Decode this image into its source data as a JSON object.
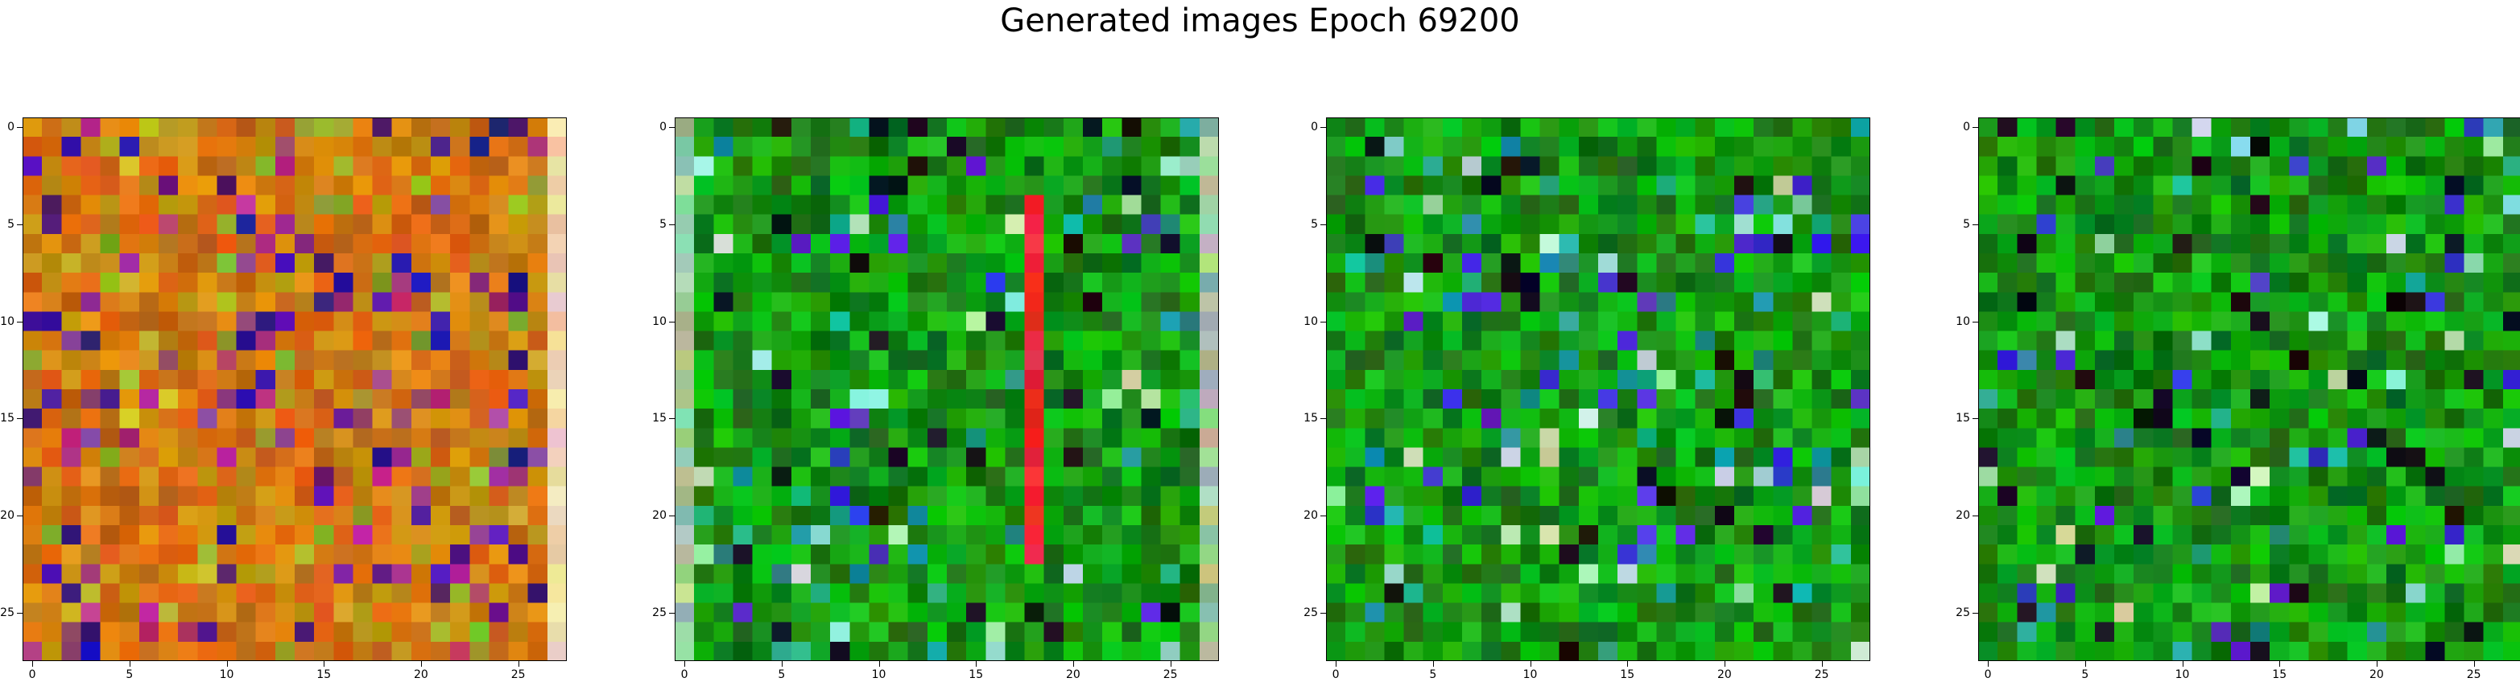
{
  "title": "Generated images Epoch 69200",
  "chart_data": {
    "type": "heatmap",
    "title": "Generated images Epoch 69200",
    "image_size": 28,
    "xlim": [
      -0.5,
      27.5
    ],
    "ylim": [
      27.5,
      -0.5
    ],
    "x_ticks": [
      "0",
      "5",
      "10",
      "15",
      "20",
      "25"
    ],
    "y_ticks": [
      "0",
      "5",
      "10",
      "15",
      "20",
      "25"
    ],
    "grid": false,
    "panels": [
      {
        "palette": "orange-brown",
        "base": "#c07a10"
      },
      {
        "palette": "green",
        "base": "#0b7a10",
        "stripe_column": 18,
        "stripe_color": "#e82222"
      },
      {
        "palette": "green",
        "base": "#1a8a1a"
      },
      {
        "palette": "green",
        "base": "#0f7a12"
      }
    ]
  }
}
